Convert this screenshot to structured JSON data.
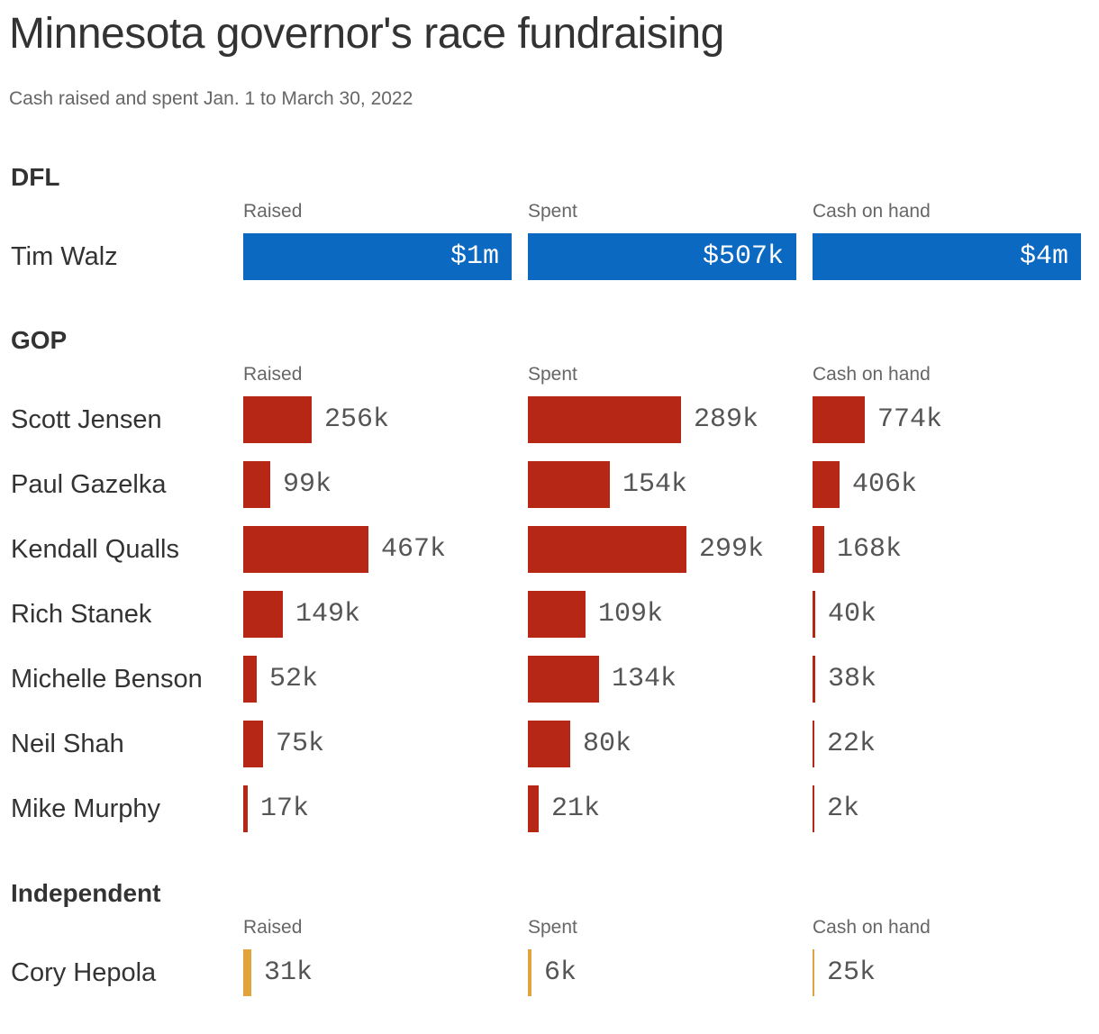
{
  "title": "Minnesota governor's race fundraising",
  "subtitle": "Cash raised and spent Jan. 1 to March 30, 2022",
  "colors": {
    "DFL": "#0b69c2",
    "GOP": "#b72715",
    "Independent": "#e3a33c"
  },
  "chart_data": {
    "type": "bar",
    "title": "Minnesota governor's race fundraising",
    "subtitle": "Cash raised and spent Jan. 1 to March 30, 2022",
    "columns": [
      "Raised",
      "Spent",
      "Cash on hand"
    ],
    "groups": [
      {
        "name": "DFL",
        "candidates": [
          {
            "name": "Tim Walz",
            "raised": 1000000,
            "spent": 507000,
            "cash": 4000000,
            "raised_label": "$1m",
            "spent_label": "$507k",
            "cash_label": "$4m"
          }
        ]
      },
      {
        "name": "GOP",
        "candidates": [
          {
            "name": "Scott Jensen",
            "raised": 256000,
            "spent": 289000,
            "cash": 774000,
            "raised_label": "256k",
            "spent_label": "289k",
            "cash_label": "774k"
          },
          {
            "name": "Paul Gazelka",
            "raised": 99000,
            "spent": 154000,
            "cash": 406000,
            "raised_label": "99k",
            "spent_label": "154k",
            "cash_label": "406k"
          },
          {
            "name": "Kendall Qualls",
            "raised": 467000,
            "spent": 299000,
            "cash": 168000,
            "raised_label": "467k",
            "spent_label": "299k",
            "cash_label": "168k"
          },
          {
            "name": "Rich Stanek",
            "raised": 149000,
            "spent": 109000,
            "cash": 40000,
            "raised_label": "149k",
            "spent_label": "109k",
            "cash_label": "40k"
          },
          {
            "name": "Michelle Benson",
            "raised": 52000,
            "spent": 134000,
            "cash": 38000,
            "raised_label": "52k",
            "spent_label": "134k",
            "cash_label": "38k"
          },
          {
            "name": "Neil Shah",
            "raised": 75000,
            "spent": 80000,
            "cash": 22000,
            "raised_label": "75k",
            "spent_label": "80k",
            "cash_label": "22k"
          },
          {
            "name": "Mike Murphy",
            "raised": 17000,
            "spent": 21000,
            "cash": 2000,
            "raised_label": "17k",
            "spent_label": "21k",
            "cash_label": "2k"
          }
        ]
      },
      {
        "name": "Independent",
        "candidates": [
          {
            "name": "Cory Hepola",
            "raised": 31000,
            "spent": 6000,
            "cash": 25000,
            "raised_label": "31k",
            "spent_label": "6k",
            "cash_label": "25k"
          }
        ]
      }
    ]
  }
}
